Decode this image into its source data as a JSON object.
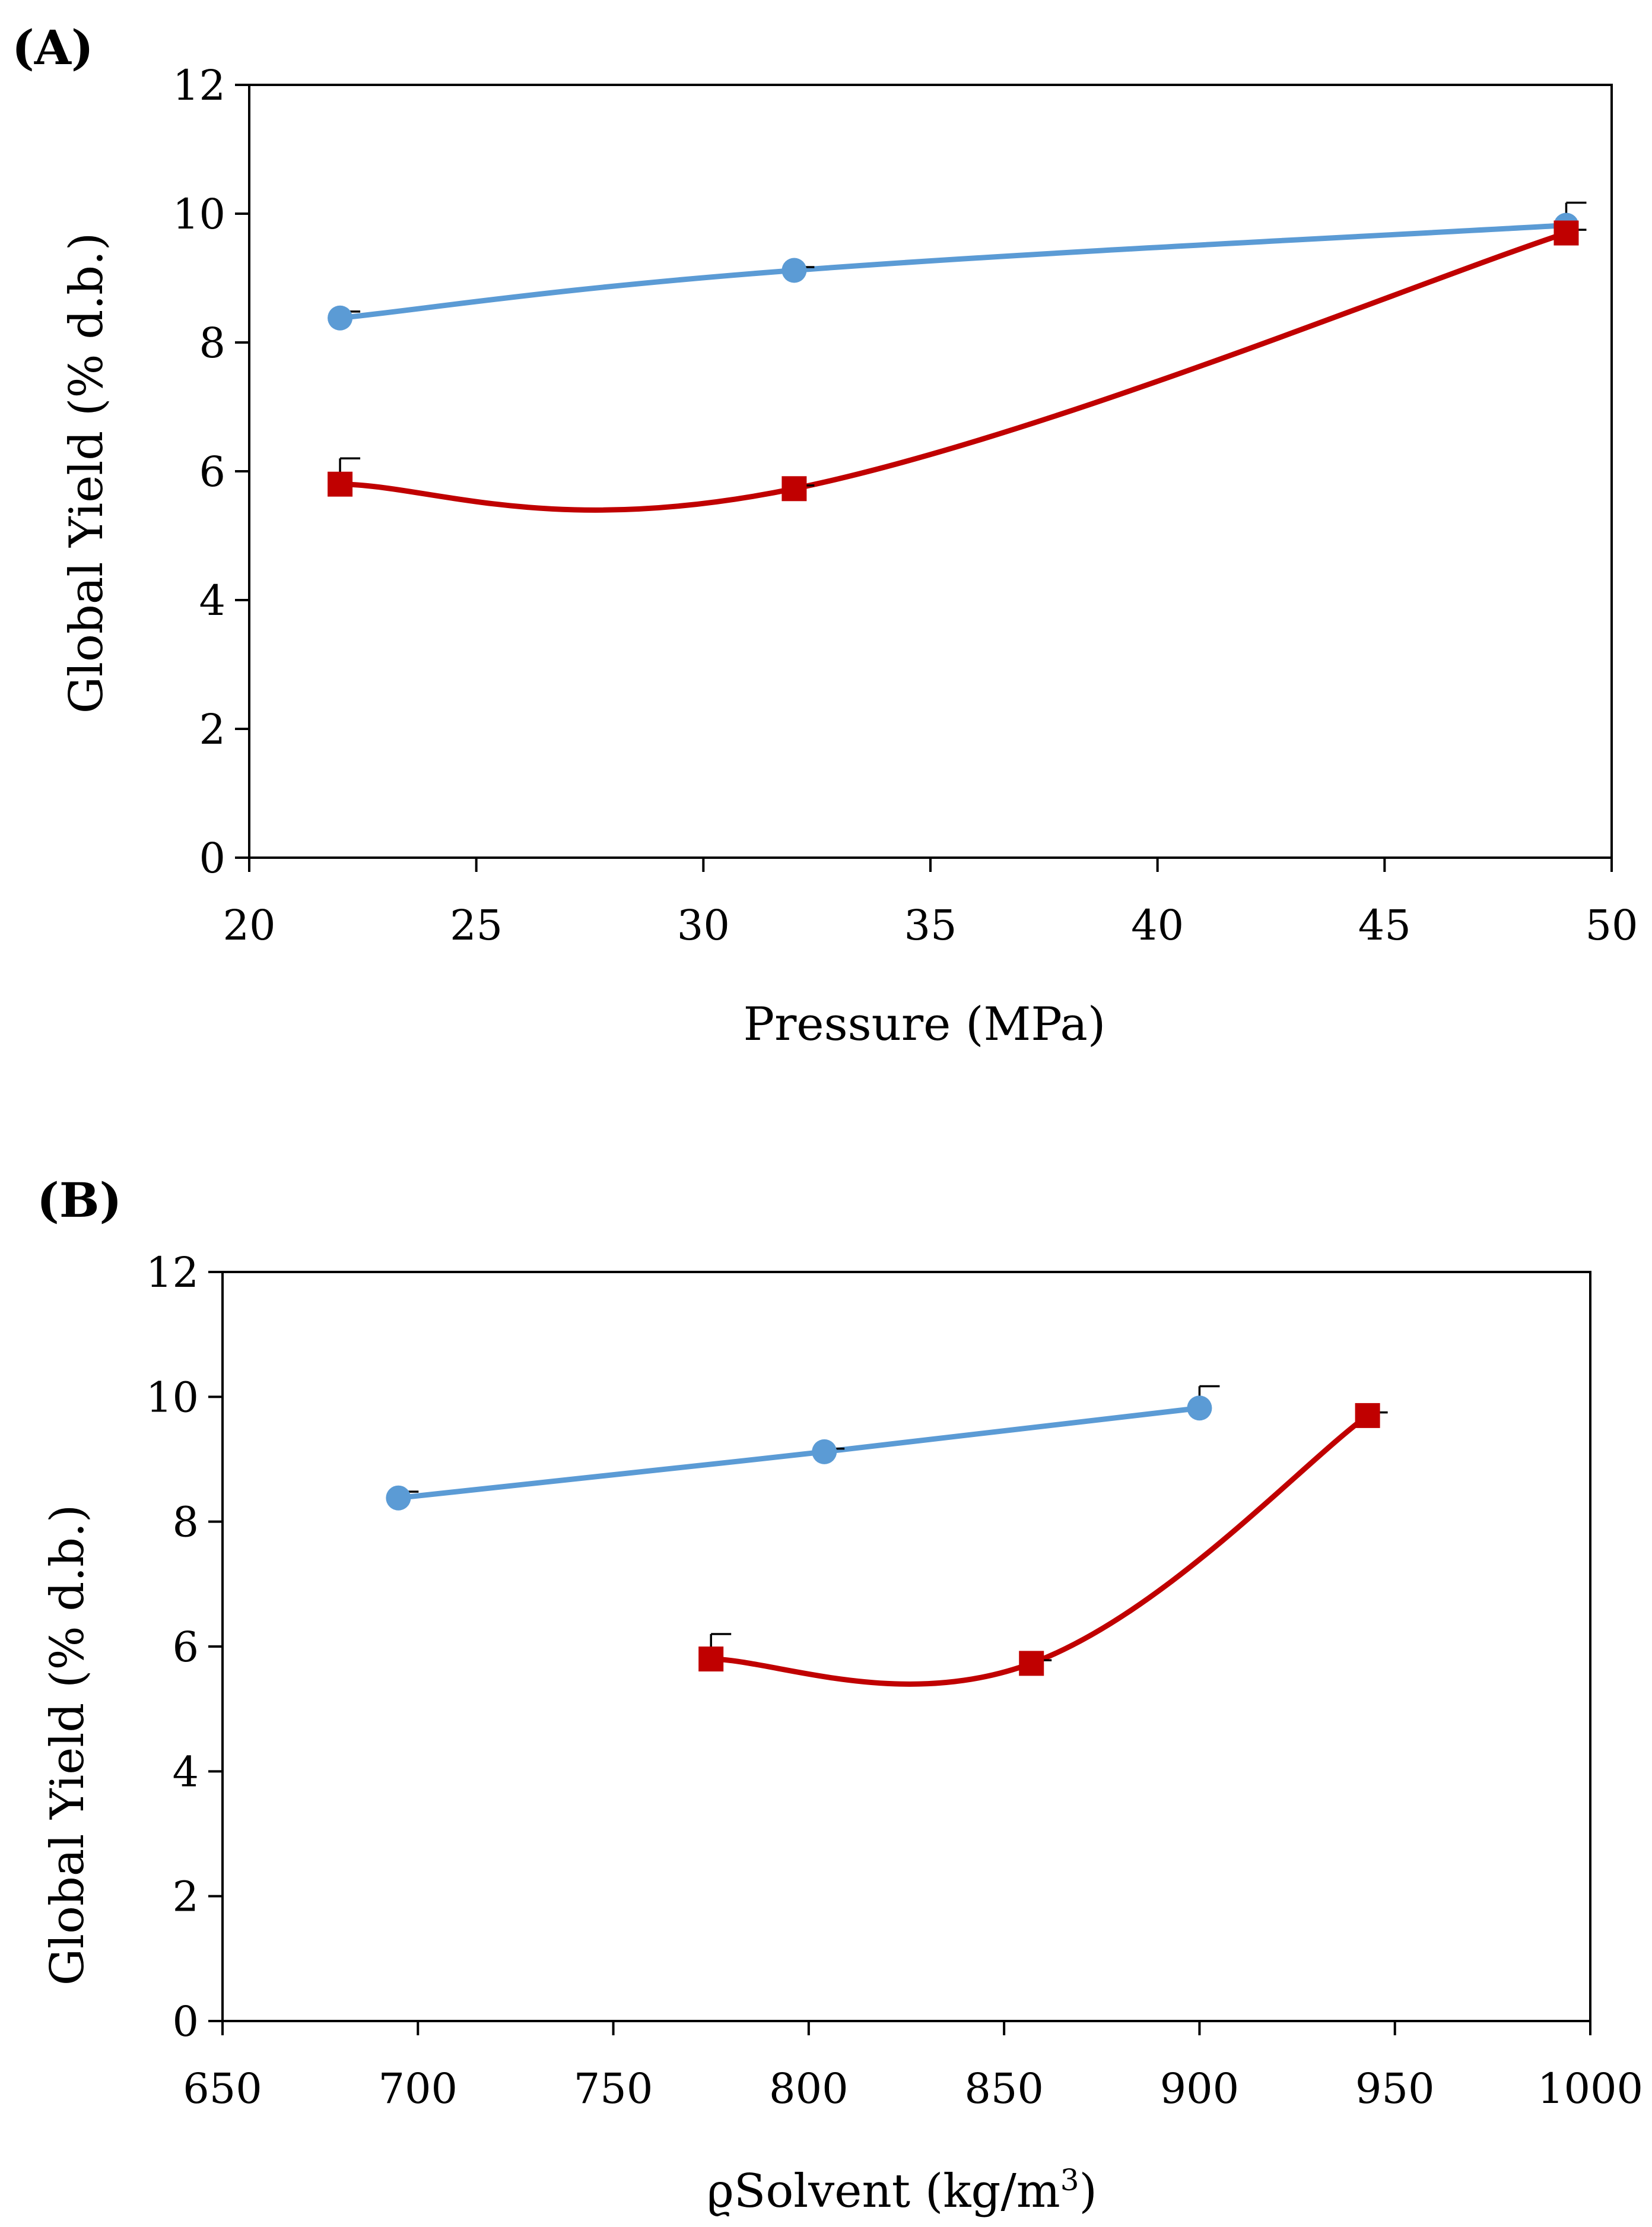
{
  "figure": {
    "colors": {
      "series1": "#5B9BD5",
      "series2": "#C00000",
      "axis": "#000000"
    }
  },
  "chart_data": [
    {
      "type": "line",
      "panel_label": "(A)",
      "title": "",
      "xlabel": "Pressure (MPa)",
      "ylabel": "Global Yield (% d.b.)",
      "xlim": [
        20,
        50
      ],
      "ylim": [
        0,
        12
      ],
      "xticks": [
        20,
        25,
        30,
        35,
        40,
        45,
        50
      ],
      "yticks": [
        0,
        2,
        4,
        6,
        8,
        10,
        12
      ],
      "grid": false,
      "series": [
        {
          "name": "series-1",
          "marker": "circle",
          "color": "#5B9BD5",
          "x": [
            22,
            32,
            49
          ],
          "y": [
            8.38,
            9.12,
            9.82
          ],
          "yerr": [
            0.1,
            0.05,
            0.35
          ]
        },
        {
          "name": "series-2",
          "marker": "square",
          "color": "#C00000",
          "x": [
            22,
            32,
            49
          ],
          "y": [
            5.8,
            5.73,
            9.7
          ],
          "yerr": [
            0.4,
            0.05,
            0.05
          ]
        }
      ]
    },
    {
      "type": "line",
      "panel_label": "(B)",
      "title": "",
      "xlabel": "ϱSolvent (kg/m",
      "xlabel_sup": "3",
      "xlabel_end": ")",
      "ylabel": "Global Yield (% d.b.)",
      "xlim": [
        650,
        1000
      ],
      "ylim": [
        0,
        12
      ],
      "xticks": [
        650,
        700,
        750,
        800,
        850,
        900,
        950,
        1000
      ],
      "yticks": [
        0,
        2,
        4,
        6,
        8,
        10,
        12
      ],
      "grid": false,
      "series": [
        {
          "name": "series-1",
          "marker": "circle",
          "color": "#5B9BD5",
          "x": [
            695,
            804,
            900
          ],
          "y": [
            8.38,
            9.12,
            9.82
          ],
          "yerr": [
            0.1,
            0.05,
            0.35
          ]
        },
        {
          "name": "series-2",
          "marker": "square",
          "color": "#C00000",
          "x": [
            775,
            857,
            943
          ],
          "y": [
            5.8,
            5.73,
            9.7
          ],
          "yerr": [
            0.4,
            0.05,
            0.05
          ]
        }
      ]
    }
  ]
}
